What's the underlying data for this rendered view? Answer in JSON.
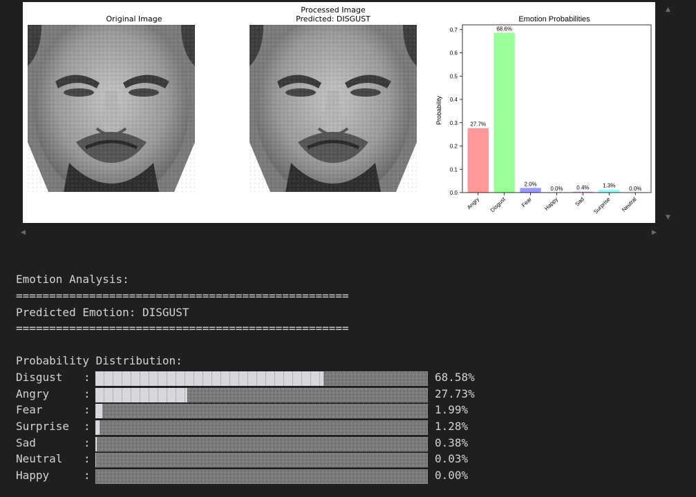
{
  "figure": {
    "original_title": "Original Image",
    "processed_title_line1": "Processed Image",
    "processed_title_line2": "Predicted: DISGUST",
    "chart_title": "Emotion Probabilities"
  },
  "chart_data": {
    "type": "bar",
    "title": "Emotion Probabilities",
    "xlabel": "",
    "ylabel": "Probability",
    "categories": [
      "Angry",
      "Disgust",
      "Fear",
      "Happy",
      "Sad",
      "Surprise",
      "Neutral"
    ],
    "values": [
      0.277,
      0.686,
      0.02,
      0.0,
      0.004,
      0.013,
      0.0
    ],
    "data_labels": [
      "27.7%",
      "68.6%",
      "2.0%",
      "0.0%",
      "0.4%",
      "1.3%",
      "0.0%"
    ],
    "ylim": [
      0,
      0.72
    ],
    "yticks": [
      "0.0",
      "0.1",
      "0.2",
      "0.3",
      "0.4",
      "0.5",
      "0.6",
      "0.7"
    ],
    "colors": [
      "#ff9999",
      "#99ff99",
      "#9999ff",
      "#ffcc99",
      "#ff99ff",
      "#99ffff",
      "#dddddd"
    ],
    "grid": false
  },
  "console": {
    "header": "Emotion Analysis:",
    "separator": "==================================================",
    "predicted": "Predicted Emotion: DISGUST",
    "dist_header": "Probability Distribution:",
    "rows": [
      {
        "label": "Disgust",
        "percent": "68.58%",
        "value": 0.6858
      },
      {
        "label": "Angry",
        "percent": "27.73%",
        "value": 0.2773
      },
      {
        "label": "Fear",
        "percent": "1.99%",
        "value": 0.0199
      },
      {
        "label": "Surprise",
        "percent": "1.28%",
        "value": 0.0128
      },
      {
        "label": "Sad",
        "percent": "0.38%",
        "value": 0.0038
      },
      {
        "label": "Neutral",
        "percent": "0.03%",
        "value": 0.0003
      },
      {
        "label": "Happy",
        "percent": "0.00%",
        "value": 0.0
      }
    ]
  },
  "icons": {
    "scroll_up": "triangle-up-icon",
    "scroll_down": "triangle-down-icon",
    "scroll_left": "triangle-left-icon",
    "scroll_right": "triangle-right-icon"
  }
}
